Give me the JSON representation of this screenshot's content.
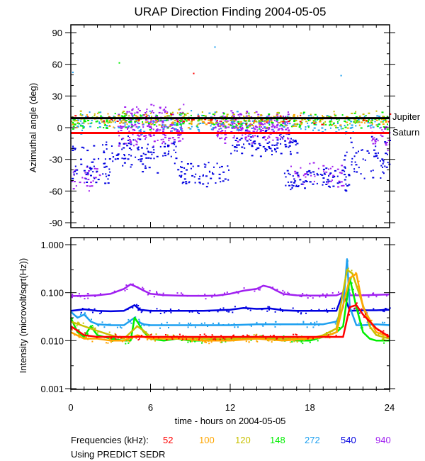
{
  "chart_data": [
    {
      "type": "scatter",
      "panel": "top",
      "title": "URAP Direction Finding  2004-05-05",
      "ylabel": "Azimuthal angle (deg)",
      "xlim": [
        0,
        24
      ],
      "ylim": [
        -90,
        90
      ],
      "yticks": [
        90,
        60,
        30,
        0,
        -30,
        -60,
        -90
      ],
      "ytick_labels": [
        "90",
        "60",
        "30",
        "0",
        "-30",
        "-60",
        "-90"
      ],
      "reference_lines": [
        {
          "name": "Jupiter",
          "y": 9,
          "color": "#000000"
        },
        {
          "name": "Saturn",
          "y": -5,
          "color": "#ff0000"
        }
      ],
      "clusters": [
        {
          "freq": "940",
          "color": "#a020f0",
          "x": [
            3.5,
            8.5
          ],
          "y": [
            -20,
            25
          ],
          "n": 260
        },
        {
          "freq": "940",
          "color": "#a020f0",
          "x": [
            10.5,
            16.5
          ],
          "y": [
            -15,
            18
          ],
          "n": 260
        },
        {
          "freq": "940",
          "color": "#a020f0",
          "x": [
            0.0,
            2.5
          ],
          "y": [
            -60,
            -35
          ],
          "n": 30
        },
        {
          "freq": "940",
          "color": "#a020f0",
          "x": [
            16.5,
            20.5
          ],
          "y": [
            -58,
            -30
          ],
          "n": 40
        },
        {
          "freq": "940",
          "color": "#a020f0",
          "x": [
            22.5,
            24.0
          ],
          "y": [
            -30,
            5
          ],
          "n": 30
        },
        {
          "freq": "540",
          "color": "#0000e0",
          "x": [
            0.0,
            3.0
          ],
          "y": [
            -62,
            -10
          ],
          "n": 60
        },
        {
          "freq": "540",
          "color": "#0000e0",
          "x": [
            3.0,
            8.0
          ],
          "y": [
            -45,
            -5
          ],
          "n": 90
        },
        {
          "freq": "540",
          "color": "#0000e0",
          "x": [
            8.0,
            12.0
          ],
          "y": [
            -58,
            -30
          ],
          "n": 60
        },
        {
          "freq": "540",
          "color": "#0000e0",
          "x": [
            12.0,
            17.0
          ],
          "y": [
            -30,
            0
          ],
          "n": 90
        },
        {
          "freq": "540",
          "color": "#0000e0",
          "x": [
            16.0,
            21.0
          ],
          "y": [
            -60,
            -35
          ],
          "n": 80
        },
        {
          "freq": "540",
          "color": "#0000e0",
          "x": [
            20.5,
            24.0
          ],
          "y": [
            -55,
            -5
          ],
          "n": 60
        },
        {
          "freq": "272",
          "color": "#1ea0f0",
          "x": [
            0.0,
            24.0
          ],
          "y": [
            -8,
            18
          ],
          "n": 240
        },
        {
          "freq": "148",
          "color": "#00ee00",
          "x": [
            0.0,
            24.0
          ],
          "y": [
            -2,
            16
          ],
          "n": 240
        },
        {
          "freq": "120",
          "color": "#c8c000",
          "x": [
            0.0,
            24.0
          ],
          "y": [
            0,
            18
          ],
          "n": 160
        },
        {
          "freq": "100",
          "color": "#ffa500",
          "x": [
            0.0,
            24.0
          ],
          "y": [
            0,
            15
          ],
          "n": 120
        },
        {
          "freq": "52",
          "color": "#ff0000",
          "x": [
            0.0,
            24.0
          ],
          "y": [
            2,
            14
          ],
          "n": 50
        }
      ],
      "outliers": [
        {
          "color": "#00ee00",
          "x": 3.6,
          "y": 62
        },
        {
          "color": "#1ea0f0",
          "x": 10.8,
          "y": 77
        },
        {
          "color": "#ff0000",
          "x": 9.2,
          "y": 52
        },
        {
          "color": "#1ea0f0",
          "x": 20.3,
          "y": 50
        },
        {
          "color": "#1ea0f0",
          "x": 0.1,
          "y": 53
        }
      ]
    },
    {
      "type": "line",
      "panel": "bottom",
      "ylabel": "Intensity (microvolt/sqrt(Hz))",
      "xlabel": "time - hours on 2004-05-05",
      "xlim": [
        0,
        24
      ],
      "ylim": [
        0.001,
        1.0
      ],
      "yscale": "log",
      "yticks": [
        1.0,
        0.1,
        0.01,
        0.001
      ],
      "ytick_labels": [
        "1.000",
        "0.100",
        "0.010",
        "0.001"
      ],
      "xticks": [
        0,
        6,
        12,
        18,
        24
      ],
      "xtick_labels": [
        "0",
        "6",
        "12",
        "18",
        "24"
      ],
      "series": [
        {
          "name": "940",
          "color": "#a020f0",
          "x": [
            0,
            1,
            2,
            3,
            4,
            4.5,
            5,
            5.5,
            6,
            7,
            8,
            9,
            10,
            11,
            12,
            13,
            14,
            14.5,
            15,
            15.5,
            16,
            17,
            18,
            19,
            20,
            20.5,
            21,
            22,
            23,
            24
          ],
          "y": [
            0.085,
            0.086,
            0.088,
            0.095,
            0.12,
            0.15,
            0.13,
            0.11,
            0.095,
            0.089,
            0.087,
            0.086,
            0.086,
            0.087,
            0.095,
            0.11,
            0.12,
            0.14,
            0.13,
            0.11,
            0.094,
            0.088,
            0.087,
            0.087,
            0.088,
            0.1,
            0.088,
            0.088,
            0.09,
            0.092
          ]
        },
        {
          "name": "540",
          "color": "#0000e0",
          "x": [
            0,
            1,
            2,
            3,
            4,
            4.8,
            5.2,
            6,
            8,
            10,
            12,
            13,
            14,
            15,
            16,
            17,
            18,
            19,
            20,
            20.5,
            21,
            22,
            23,
            24
          ],
          "y": [
            0.042,
            0.045,
            0.042,
            0.041,
            0.042,
            0.055,
            0.044,
            0.042,
            0.042,
            0.042,
            0.044,
            0.048,
            0.046,
            0.047,
            0.043,
            0.042,
            0.042,
            0.042,
            0.042,
            0.1,
            0.042,
            0.043,
            0.043,
            0.044
          ]
        },
        {
          "name": "272",
          "color": "#1ea0f0",
          "x": [
            0,
            0.5,
            1,
            1.5,
            2,
            3,
            4,
            4.8,
            5,
            5.5,
            6,
            8,
            10,
            12,
            14,
            16,
            18,
            19,
            20,
            20.5,
            20.8,
            21,
            21.5,
            22,
            23,
            24
          ],
          "y": [
            0.04,
            0.03,
            0.035,
            0.025,
            0.022,
            0.021,
            0.021,
            0.03,
            0.025,
            0.022,
            0.021,
            0.021,
            0.021,
            0.021,
            0.022,
            0.022,
            0.022,
            0.022,
            0.025,
            0.05,
            0.5,
            0.05,
            0.021,
            0.021,
            0.022,
            0.021
          ]
        },
        {
          "name": "148",
          "color": "#00ee00",
          "x": [
            0,
            0.5,
            1,
            1.5,
            2,
            3,
            4,
            4.5,
            4.8,
            5,
            5.5,
            6,
            7,
            8,
            9,
            10,
            12,
            14,
            16,
            17,
            18,
            19,
            20,
            20.5,
            21,
            21.5,
            22,
            22.5,
            23,
            24
          ],
          "y": [
            0.03,
            0.015,
            0.012,
            0.02,
            0.013,
            0.011,
            0.01,
            0.01,
            0.03,
            0.025,
            0.015,
            0.011,
            0.01,
            0.011,
            0.01,
            0.01,
            0.011,
            0.011,
            0.011,
            0.01,
            0.01,
            0.012,
            0.015,
            0.02,
            0.2,
            0.05,
            0.015,
            0.011,
            0.01,
            0.01
          ]
        },
        {
          "name": "120",
          "color": "#c8c000",
          "x": [
            0,
            1,
            2,
            3,
            4,
            5,
            5.5,
            6,
            8,
            10,
            12,
            14,
            16,
            18,
            19,
            20,
            20.8,
            21.2,
            21.8,
            22.5,
            23,
            24
          ],
          "y": [
            0.025,
            0.02,
            0.016,
            0.013,
            0.011,
            0.02,
            0.016,
            0.012,
            0.012,
            0.011,
            0.011,
            0.012,
            0.011,
            0.011,
            0.013,
            0.018,
            0.3,
            0.25,
            0.08,
            0.02,
            0.013,
            0.011
          ]
        },
        {
          "name": "100",
          "color": "#ffa500",
          "x": [
            0,
            1,
            2,
            3,
            4,
            5,
            6,
            8,
            10,
            12,
            14,
            16,
            18,
            19,
            20,
            21,
            21.5,
            22,
            23,
            24
          ],
          "y": [
            0.015,
            0.011,
            0.011,
            0.01,
            0.01,
            0.013,
            0.011,
            0.011,
            0.01,
            0.01,
            0.011,
            0.01,
            0.011,
            0.012,
            0.015,
            0.2,
            0.25,
            0.05,
            0.015,
            0.012
          ]
        },
        {
          "name": "52",
          "color": "#ff0000",
          "x": [
            0,
            1,
            2,
            4,
            6,
            8,
            10,
            12,
            14,
            16,
            18,
            19,
            20,
            20.5,
            21,
            21.5,
            22,
            23,
            24
          ],
          "y": [
            0.02,
            0.013,
            0.012,
            0.012,
            0.012,
            0.012,
            0.012,
            0.012,
            0.012,
            0.012,
            0.012,
            0.012,
            0.012,
            0.012,
            0.05,
            0.055,
            0.035,
            0.018,
            0.012
          ]
        }
      ]
    }
  ],
  "labels": {
    "jupiter": "Jupiter",
    "saturn": "Saturn",
    "frequencies_prefix": "Frequencies (kHz):",
    "note": "Using PREDICT SEDR"
  },
  "legend": [
    {
      "label": "52",
      "color": "#ff0000"
    },
    {
      "label": "100",
      "color": "#ffa500"
    },
    {
      "label": "120",
      "color": "#c8c000"
    },
    {
      "label": "148",
      "color": "#00ee00"
    },
    {
      "label": "272",
      "color": "#1ea0f0"
    },
    {
      "label": "540",
      "color": "#0000e0"
    },
    {
      "label": "940",
      "color": "#a020f0"
    }
  ]
}
